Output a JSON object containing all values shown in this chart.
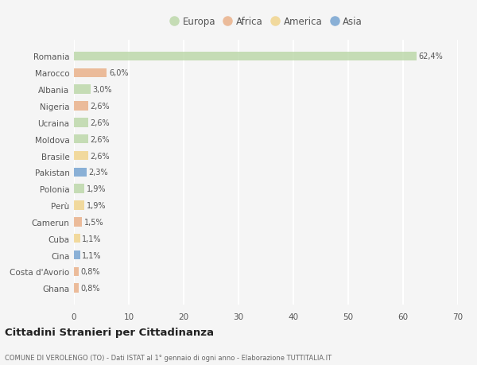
{
  "countries": [
    "Romania",
    "Marocco",
    "Albania",
    "Nigeria",
    "Ucraina",
    "Moldova",
    "Brasile",
    "Pakistan",
    "Polonia",
    "Perù",
    "Camerun",
    "Cuba",
    "Cina",
    "Costa d'Avorio",
    "Ghana"
  ],
  "values": [
    62.4,
    6.0,
    3.0,
    2.6,
    2.6,
    2.6,
    2.6,
    2.3,
    1.9,
    1.9,
    1.5,
    1.1,
    1.1,
    0.8,
    0.8
  ],
  "labels": [
    "62,4%",
    "6,0%",
    "3,0%",
    "2,6%",
    "2,6%",
    "2,6%",
    "2,6%",
    "2,3%",
    "1,9%",
    "1,9%",
    "1,5%",
    "1,1%",
    "1,1%",
    "0,8%",
    "0,8%"
  ],
  "continents": [
    "Europa",
    "Africa",
    "Europa",
    "Africa",
    "Europa",
    "Europa",
    "America",
    "Asia",
    "Europa",
    "America",
    "Africa",
    "America",
    "Asia",
    "Africa",
    "Africa"
  ],
  "colors": {
    "Europa": "#b5d4a0",
    "Africa": "#e8a87c",
    "America": "#f0d080",
    "Asia": "#6699cc"
  },
  "legend_order": [
    "Europa",
    "Africa",
    "America",
    "Asia"
  ],
  "xlim": [
    0,
    70
  ],
  "xticks": [
    0,
    10,
    20,
    30,
    40,
    50,
    60,
    70
  ],
  "title": "Cittadini Stranieri per Cittadinanza",
  "subtitle": "COMUNE DI VEROLENGO (TO) - Dati ISTAT al 1° gennaio di ogni anno - Elaborazione TUTTITALIA.IT",
  "bg_color": "#f5f5f5",
  "grid_color": "#ffffff",
  "bar_alpha": 0.75
}
